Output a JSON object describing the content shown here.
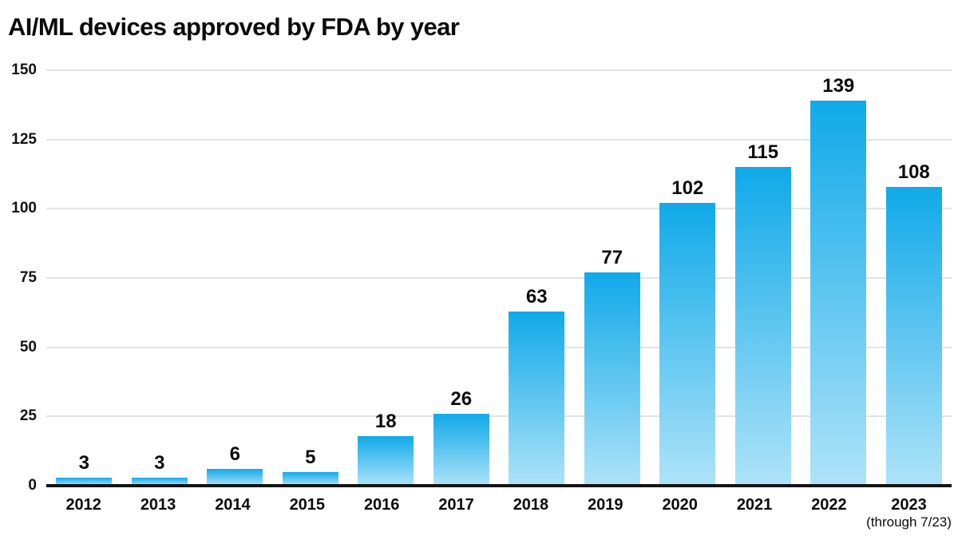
{
  "title": "AI/ML devices approved by FDA by year",
  "chart_data": {
    "type": "bar",
    "title": "AI/ML devices approved by FDA by year",
    "categories": [
      "2012",
      "2013",
      "2014",
      "2015",
      "2016",
      "2017",
      "2018",
      "2019",
      "2020",
      "2021",
      "2022",
      "2023"
    ],
    "values": [
      3,
      3,
      6,
      5,
      18,
      26,
      63,
      77,
      102,
      115,
      139,
      108
    ],
    "last_category_note": "(through 7/23)",
    "xlabel": "",
    "ylabel": "",
    "ylim": [
      0,
      150
    ],
    "yticks": [
      0,
      25,
      50,
      75,
      100,
      125,
      150
    ],
    "grid": true,
    "legend_position": "none",
    "value_labels_shown": true
  },
  "colors": {
    "bar_gradient_top": "#10a9e9",
    "bar_gradient_bottom": "#aee3f8",
    "gridline": "#e3e3e3",
    "axis_line": "#141414",
    "text": "#0b0b0b",
    "background": "#ffffff"
  }
}
